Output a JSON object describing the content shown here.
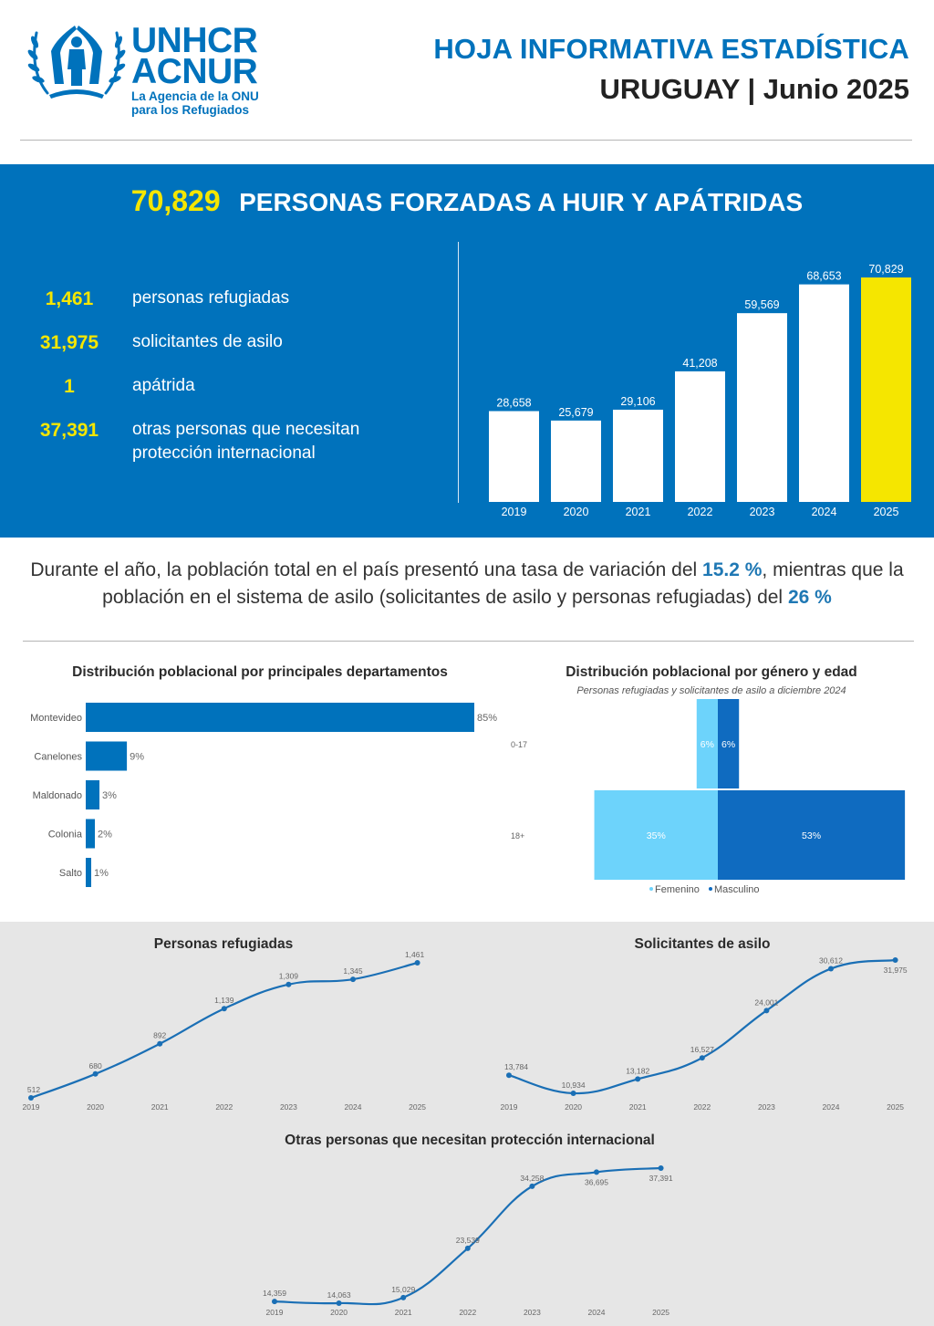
{
  "header": {
    "logo": {
      "line1": "UNHCR",
      "line2": "ACNUR",
      "tagline1": "La Agencia de la ONU",
      "tagline2": "para los Refugiados"
    },
    "title": "HOJA INFORMATIVA ESTADÍSTICA",
    "subtitle": "URUGUAY | Junio 2025"
  },
  "colors": {
    "brand_blue": "#0072bc",
    "highlight_yellow": "#f5e600",
    "female": "#6dd3fb",
    "male": "#0f6bc0",
    "line": "#1a6fb5",
    "grey_bg": "#e6e6e6"
  },
  "band": {
    "total": "70,829",
    "total_label": "PERSONAS FORZADAS A HUIR Y APÁTRIDAS",
    "stats": [
      {
        "value": "1,461",
        "label": "personas refugiadas"
      },
      {
        "value": "31,975",
        "label": "solicitantes de asilo"
      },
      {
        "value": "1",
        "label": "apátrida"
      },
      {
        "value": "37,391",
        "label": "otras personas que necesitan protección internacional"
      }
    ]
  },
  "summary": {
    "part1": "Durante el año, la población total en el país presentó una tasa de variación del ",
    "rate1": "15.2 %",
    "part2": ", mientras que la población en el sistema de asilo (solicitantes de asilo y personas refugiadas) del ",
    "rate2": "26 %"
  },
  "chart_data": [
    {
      "id": "total-by-year",
      "type": "bar",
      "title": "",
      "categories": [
        "2019",
        "2020",
        "2021",
        "2022",
        "2023",
        "2024",
        "2025"
      ],
      "values": [
        28658,
        25679,
        29106,
        41208,
        59569,
        68653,
        70829
      ],
      "labels": [
        "28,658",
        "25,679",
        "29,106",
        "41,208",
        "59,569",
        "68,653",
        "70,829"
      ],
      "highlight": "2025",
      "ylim": [
        0,
        72000
      ],
      "grid": false
    },
    {
      "id": "departments",
      "type": "bar",
      "orientation": "horizontal",
      "title": "Distribución poblacional por principales departamentos",
      "categories": [
        "Montevideo",
        "Canelones",
        "Maldonado",
        "Colonia",
        "Salto"
      ],
      "values": [
        85,
        9,
        3,
        2,
        1
      ],
      "labels": [
        "85%",
        "9%",
        "3%",
        "2%",
        "1%"
      ],
      "unit": "%",
      "xlim": [
        0,
        85
      ],
      "grid": false
    },
    {
      "id": "gender-age",
      "type": "bar",
      "orientation": "horizontal-diverging",
      "title": "Distribución poblacional por género y edad",
      "subtitle": "Personas refugiadas y solicitantes de asilo a diciembre 2024",
      "categories": [
        "0-17",
        "18+"
      ],
      "series": [
        {
          "name": "Femenino",
          "values": [
            6,
            35
          ],
          "labels": [
            "6%",
            "35%"
          ]
        },
        {
          "name": "Masculino",
          "values": [
            6,
            53
          ],
          "labels": [
            "6%",
            "53%"
          ]
        }
      ],
      "legend": "bottom",
      "unit": "%"
    },
    {
      "id": "refugiados",
      "type": "line",
      "title": "Personas refugiadas",
      "x": [
        "2019",
        "2020",
        "2021",
        "2022",
        "2023",
        "2024",
        "2025"
      ],
      "values": [
        512,
        680,
        892,
        1139,
        1309,
        1345,
        1461
      ],
      "labels": [
        "512",
        "680",
        "892",
        "1,139",
        "1,309",
        "1,345",
        "1,461"
      ],
      "ylim": [
        512,
        1461
      ],
      "grid": false
    },
    {
      "id": "solicitantes",
      "type": "line",
      "title": "Solicitantes de asilo",
      "x": [
        "2019",
        "2020",
        "2021",
        "2022",
        "2023",
        "2024",
        "2025"
      ],
      "values": [
        13784,
        10934,
        13182,
        16527,
        24001,
        30612,
        31975
      ],
      "labels": [
        "13,784",
        "10,934",
        "13,182",
        "16,527",
        "24,001",
        "30,612",
        "31,975"
      ],
      "ylim": [
        10934,
        31975
      ],
      "grid": false
    },
    {
      "id": "otras",
      "type": "line",
      "title": "Otras personas que necesitan protección internacional",
      "x": [
        "2019",
        "2020",
        "2021",
        "2022",
        "2023",
        "2024",
        "2025"
      ],
      "values": [
        14359,
        14063,
        15029,
        23539,
        34258,
        36695,
        37391
      ],
      "labels": [
        "14,359",
        "14,063",
        "15,029",
        "23,539",
        "34,258",
        "36,695",
        "37,391"
      ],
      "ylim": [
        14063,
        37391
      ],
      "grid": false
    }
  ]
}
